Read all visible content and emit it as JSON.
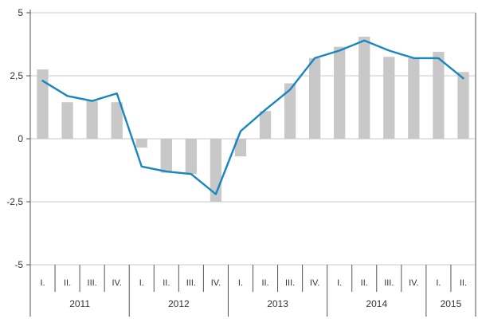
{
  "chart_data": {
    "type": "bar+line",
    "title": "",
    "xlabel": "",
    "ylabel": "",
    "ylim": [
      -5,
      5
    ],
    "yticks": [
      "5",
      "2,5",
      "0",
      "-2,5",
      "-5"
    ],
    "ytick_values": [
      5,
      2.5,
      0,
      -2.5,
      -5
    ],
    "grid": true,
    "categories": [
      "I.",
      "II.",
      "III.",
      "IV.",
      "I.",
      "II.",
      "III.",
      "IV.",
      "I.",
      "II.",
      "III.",
      "IV.",
      "I.",
      "II.",
      "III.",
      "IV.",
      "I.",
      "II."
    ],
    "years": [
      {
        "label": "2011",
        "quarters": 4
      },
      {
        "label": "2012",
        "quarters": 4
      },
      {
        "label": "2013",
        "quarters": 4
      },
      {
        "label": "2014",
        "quarters": 4
      },
      {
        "label": "2015",
        "quarters": 2
      }
    ],
    "series": [
      {
        "name": "bars",
        "type": "bar",
        "color": "#c8c8c8",
        "values": [
          2.75,
          1.45,
          1.5,
          1.45,
          -0.35,
          -1.35,
          -1.4,
          -2.5,
          -0.7,
          1.1,
          2.2,
          3.2,
          3.65,
          4.05,
          3.25,
          3.2,
          3.45,
          2.65
        ]
      },
      {
        "name": "line",
        "type": "line",
        "color": "#1a86c0",
        "values": [
          2.3,
          1.7,
          1.5,
          1.8,
          -1.1,
          -1.3,
          -1.4,
          -2.2,
          0.3,
          1.15,
          1.95,
          3.2,
          3.5,
          3.9,
          3.5,
          3.2,
          3.2,
          2.4
        ]
      }
    ],
    "colors": {
      "grid": "#c8c8c8",
      "axis": "#555555",
      "bar": "#c8c8c8",
      "line": "#1a86c0"
    }
  }
}
